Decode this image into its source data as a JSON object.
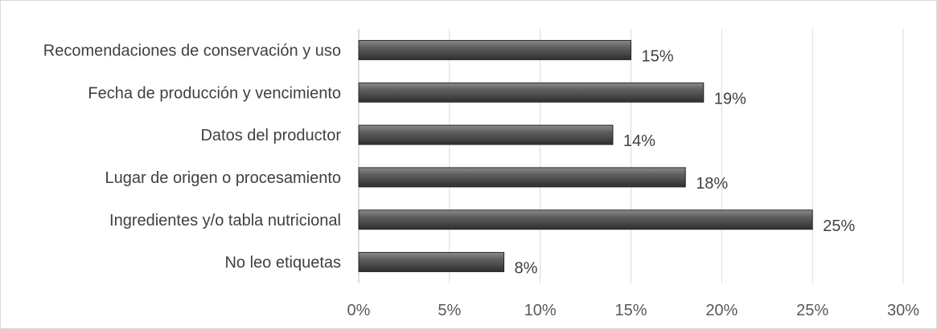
{
  "chart_data": {
    "type": "bar",
    "orientation": "horizontal",
    "categories": [
      "Recomendaciones de conservación y uso",
      "Fecha de producción y vencimiento",
      "Datos del productor",
      "Lugar de origen o procesamiento",
      "Ingredientes y/o tabla nutricional",
      "No leo etiquetas"
    ],
    "values": [
      15,
      19,
      14,
      18,
      25,
      8
    ],
    "data_labels": [
      "15%",
      "19%",
      "14%",
      "18%",
      "25%",
      "8%"
    ],
    "x_ticks": [
      0,
      5,
      10,
      15,
      20,
      25,
      30
    ],
    "x_tick_labels": [
      "0%",
      "5%",
      "10%",
      "15%",
      "20%",
      "25%",
      "30%"
    ],
    "xlim": [
      0,
      30
    ],
    "grid": true,
    "legend": false,
    "bar_color": "#595959",
    "title": "",
    "xlabel": "",
    "ylabel": ""
  }
}
